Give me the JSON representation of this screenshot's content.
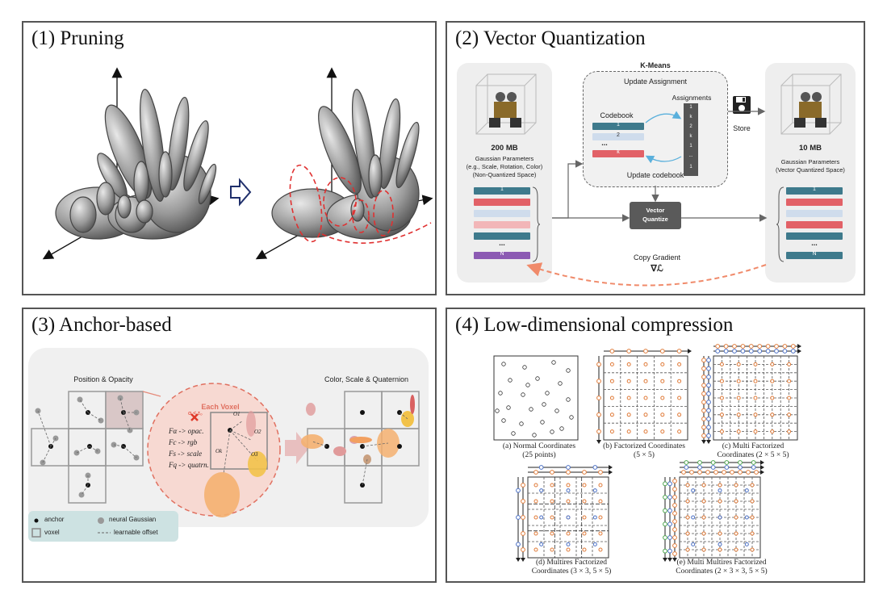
{
  "panels": {
    "pruning": {
      "title": "(1) Pruning"
    },
    "vq": {
      "title": "(2) Vector Quantization",
      "kmeans_title": "K-Means",
      "update_assignment": "Update Assignment",
      "assignments_label": "Assignments",
      "codebook_label": "Codebook",
      "codebook_entries": [
        "1",
        "2",
        "...",
        "k"
      ],
      "assignment_values": [
        "1",
        "k",
        "2",
        "k",
        "1",
        "...",
        "1"
      ],
      "update_codebook": "Update codebook",
      "left_size": "200 MB",
      "left_desc_1": "Gaussian Parameters",
      "left_desc_2": "(e.g., Scale, Rotation, Color)",
      "left_desc_3": "(Non-Quantized Space)",
      "left_list_first": "1",
      "left_list_dots": "...",
      "left_list_last": "N",
      "store_label": "Store",
      "right_size": "10 MB",
      "right_desc_1": "Gaussian Parameters",
      "right_desc_2": "(Vector Quantized Space)",
      "right_list_first": "1",
      "right_list_dots": "...",
      "right_list_last": "N",
      "vq_box_1": "Vector",
      "vq_box_2": "Quantize",
      "copy_gradient": "Copy Gradient",
      "gradient_symbol": "∇ℒ",
      "colors": {
        "teal": "#3e7a8c",
        "red": "#e26167",
        "light_blue": "#cfdcec",
        "pink": "#f2b6b8",
        "purple": "#8c5ab3"
      }
    },
    "anchor": {
      "title": "(3) Anchor-based",
      "position_opacity": "Position & Opacity",
      "color_scale": "Color, Scale & Quaternion",
      "each_voxel": "Each Voxel",
      "alpha_cond": "α < τ₀",
      "formulas": [
        "Fα -> opac.",
        "Fc -> rgb",
        "Fs -> scale",
        "Fq -> quatrn."
      ],
      "offset_labels": [
        "O1",
        "O2",
        "O3",
        "Ok"
      ],
      "legend": {
        "anchor": "anchor",
        "voxel": "voxel",
        "neural_gaussian": "neural Gaussian",
        "learnable_offset": "learnable offset"
      }
    },
    "lowdim": {
      "title": "(4) Low-dimensional compression",
      "captions": {
        "a1": "(a) Normal Coordinates",
        "a2": "(25 points)",
        "b1": "(b) Factorized Coordinates",
        "b2": "(5 × 5)",
        "c1": "(c) Multi Factorized",
        "c2": "Coordinates (2 × 5 × 5)",
        "d1": "(d) Multires Factorized",
        "d2": "Coordinates (3 × 3, 5 × 5)",
        "e1": "(e) Multi Multires Factorized",
        "e2": "Coordinates (2 × 3 × 3, 5 × 5)"
      }
    }
  }
}
